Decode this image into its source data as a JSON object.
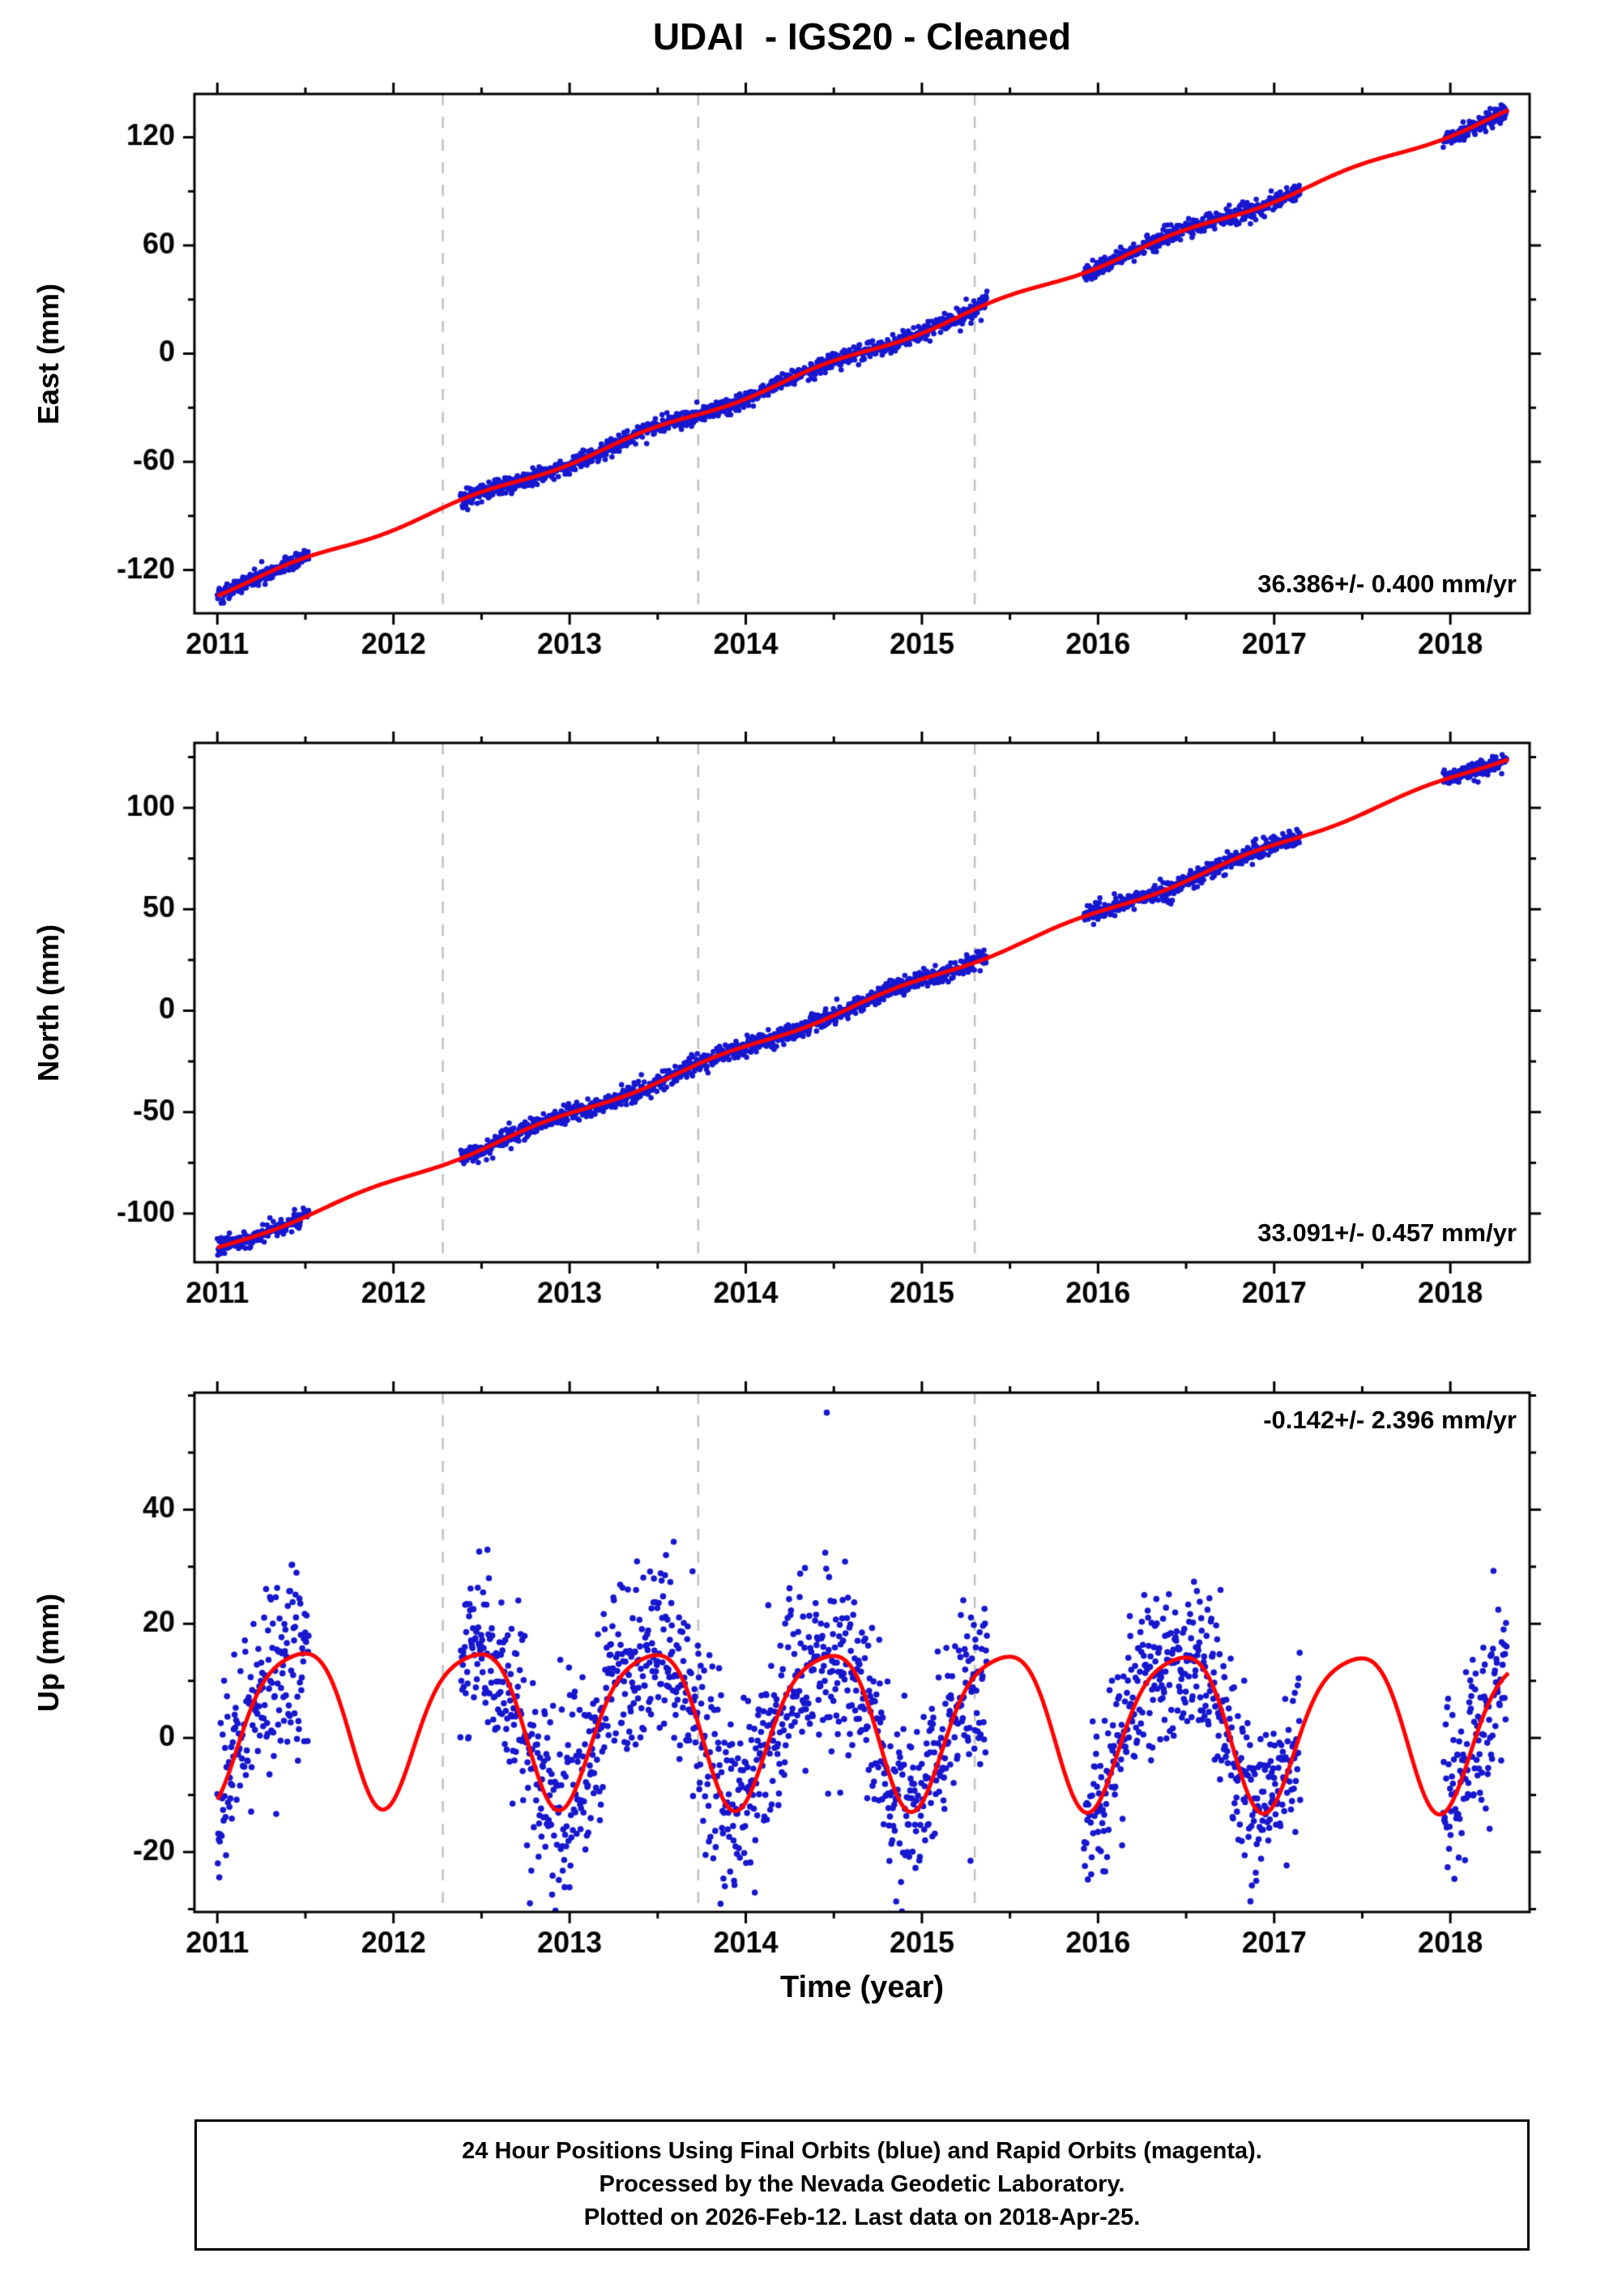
{
  "title": "UDAI  - IGS20 - Cleaned",
  "xlabel": "Time (year)",
  "caption": {
    "line1": "24 Hour Positions Using Final Orbits (blue) and Rapid Orbits (magenta).",
    "line2": "Processed by the Nevada Geodetic Laboratory.",
    "line3": "Plotted on 2026-Feb-12. Last data on 2018-Apr-25."
  },
  "chart_data": {
    "type": "scatter",
    "title": "UDAI  - IGS20 - Cleaned",
    "xlabel": "Time (year)",
    "x_range": [
      2010.87,
      2018.45
    ],
    "xticks": [
      2011,
      2012,
      2013,
      2014,
      2015,
      2016,
      2017,
      2018
    ],
    "x_minor_step": 0.5,
    "sampling_per_year": 365,
    "data_segments_years": [
      [
        2011.0,
        2011.52
      ],
      [
        2012.38,
        2015.37
      ],
      [
        2015.92,
        2017.15
      ],
      [
        2017.96,
        2018.32
      ]
    ],
    "dashed_vertical_lines_years": [
      2012.28,
      2013.73,
      2015.3
    ],
    "fit_line_span_years": [
      2011.0,
      2018.33
    ],
    "colors": {
      "points": "#1717cf",
      "fit_line": "#ff0000",
      "dashed": "#c0c0c0",
      "frame": "#000000"
    },
    "panels": [
      {
        "id": "east",
        "ylabel": "East (mm)",
        "stat_label": "36.386+/- 0.400 mm/yr",
        "stat_corner": "bottom-right",
        "ylim": [
          -144,
          144
        ],
        "yticks": [
          -120,
          -60,
          0,
          60,
          120
        ],
        "y_minor_step": 30,
        "trend_mm_per_yr": 36.386,
        "trend_ref_year": 2014.65,
        "seasonal": {
          "offset": 0,
          "annual_amp": 1.6,
          "annual_phase": 0.2
        },
        "noise_sigma_mm": 2.4,
        "point_radius": 3.3,
        "seed": 101
      },
      {
        "id": "north",
        "ylabel": "North (mm)",
        "stat_label": "33.091+/- 0.457 mm/yr",
        "stat_corner": "bottom-right",
        "ylim": [
          -124,
          132
        ],
        "yticks": [
          -100,
          -50,
          0,
          50,
          100
        ],
        "y_minor_step": 25,
        "trend_mm_per_yr": 33.091,
        "trend_ref_year": 2014.55,
        "seasonal": {
          "offset": 0,
          "annual_amp": 1.2,
          "annual_phase": 0.6
        },
        "noise_sigma_mm": 2.2,
        "point_radius": 3.3,
        "seed": 202
      },
      {
        "id": "up",
        "ylabel": "Up (mm)",
        "stat_label": "-0.142+/- 2.396 mm/yr",
        "stat_corner": "top-right",
        "ylim": [
          -30.5,
          60.5
        ],
        "yticks": [
          -20,
          0,
          20,
          40
        ],
        "y_minor_step": 10,
        "trend_mm_per_yr": -0.142,
        "trend_ref_year": 2014.5,
        "seasonal": {
          "offset": 3,
          "annual_amp": 13.5,
          "annual_phase": 0.2,
          "semiannual_amp": 2.5,
          "semiannual_phase": 0.05
        },
        "noise_sigma_mm": 7.8,
        "point_radius": 3.8,
        "outliers": [
          {
            "year": 2014.46,
            "value_mm": 57
          }
        ],
        "seed": 303
      }
    ]
  }
}
